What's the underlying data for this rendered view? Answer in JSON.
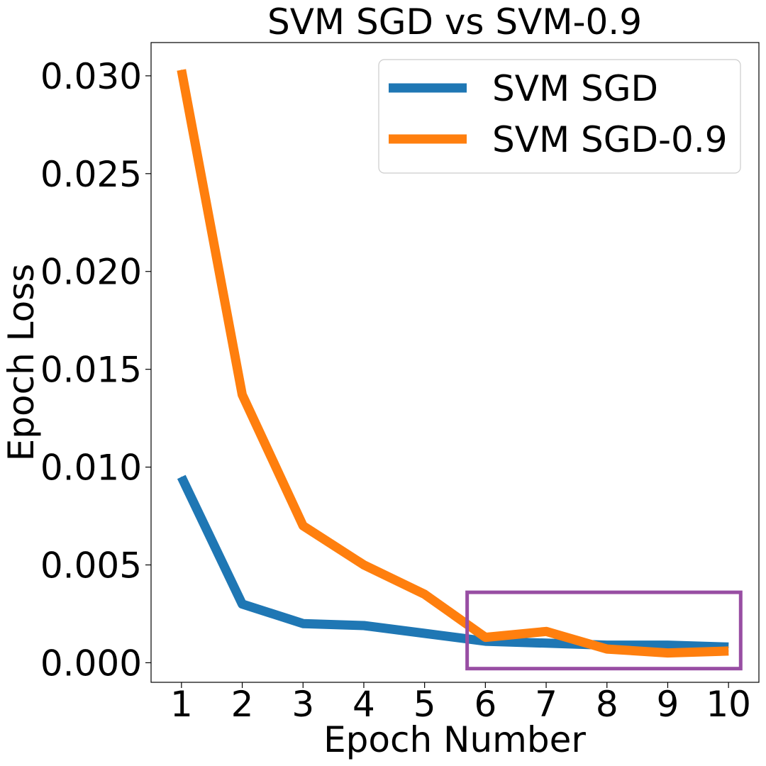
{
  "chart_data": {
    "type": "line",
    "title": "SVM SGD vs SVM-0.9",
    "xlabel": "Epoch Number",
    "ylabel": "Epoch Loss",
    "x": [
      1,
      2,
      3,
      4,
      5,
      6,
      7,
      8,
      9,
      10
    ],
    "x_ticks": [
      "1",
      "2",
      "3",
      "4",
      "5",
      "6",
      "7",
      "8",
      "9",
      "10"
    ],
    "y_ticks": [
      "0.000",
      "0.005",
      "0.010",
      "0.015",
      "0.020",
      "0.025",
      "0.030"
    ],
    "xlim": [
      0.5,
      10.5
    ],
    "ylim": [
      -0.001,
      0.0317
    ],
    "grid": false,
    "legend_position": "top-right",
    "series": [
      {
        "name": "SVM SGD",
        "color": "#1f77b4",
        "values": [
          0.0095,
          0.003,
          0.002,
          0.0019,
          0.0015,
          0.0011,
          0.001,
          0.0009,
          0.0009,
          0.0008
        ]
      },
      {
        "name": "SVM SGD-0.9",
        "color": "#ff7f0e",
        "values": [
          0.0303,
          0.0137,
          0.007,
          0.005,
          0.0035,
          0.0013,
          0.0016,
          0.0007,
          0.0005,
          0.0006
        ]
      }
    ],
    "highlight_box": {
      "color": "#984ea3",
      "x_range": [
        5.7,
        10.2
      ],
      "y_range": [
        -0.0003,
        0.0036
      ]
    }
  }
}
